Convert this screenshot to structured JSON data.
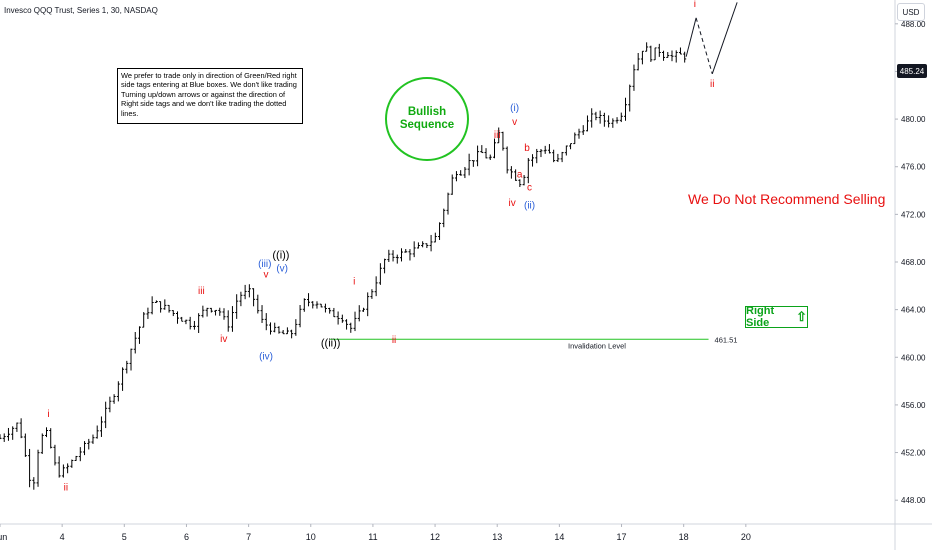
{
  "header": {
    "title": "Invesco QQQ Trust, Series 1, 30, NASDAQ",
    "currency": "USD"
  },
  "note": "We prefer to trade only in direction of Green/Red right side tags entering at Blue boxes. We don't like trading Turning up/down arrows or against the direction of Right side tags and we don't like trading the dotted lines.",
  "bullish": {
    "line1": "Bullish",
    "line2": "Sequence"
  },
  "recommendation": "We Do Not Recommend Selling",
  "right_side": {
    "label": "Right Side"
  },
  "last_price": "485.24",
  "colors": {
    "red": "#e81010",
    "blue": "#2b5fd8",
    "black": "#000000",
    "green": "#0ba31a",
    "bars": "#000000"
  },
  "chart_data": {
    "type": "line",
    "style": "ohlc-bars",
    "ylim": [
      446,
      490
    ],
    "y_ticks": [
      448,
      452,
      456,
      460,
      464,
      468,
      472,
      476,
      480,
      484,
      488
    ],
    "x_ticks": [
      "Jun",
      "4",
      "5",
      "6",
      "7",
      "10",
      "11",
      "12",
      "13",
      "14",
      "17",
      "18",
      "20"
    ],
    "xrange_x": [
      0,
      72
    ],
    "tick_x": [
      0,
      5,
      10,
      15,
      20,
      25,
      30,
      35,
      40,
      45,
      50,
      55,
      60
    ],
    "price_path_x": [
      0,
      1.5,
      2.6,
      3.2,
      3.8,
      4.6,
      5.3,
      6.2,
      7.5,
      9,
      10.5,
      11.5,
      12.3,
      13.2,
      14.2,
      15.5,
      16.6,
      17.6,
      18.3,
      19.2,
      20.2,
      21,
      21.7,
      22.4,
      23.4,
      24.5,
      25.6,
      26.4,
      27.5,
      28.2,
      29,
      30,
      31,
      32,
      33,
      34,
      35,
      36,
      36.6,
      36.9,
      37.6,
      38.7,
      39.4,
      40.2,
      40.8,
      41.4,
      42,
      42.4,
      42.7,
      43.2,
      44,
      44.7,
      45.5,
      46.2,
      47,
      47.8,
      48.5,
      49.3,
      50.1,
      51,
      51.8,
      52.4,
      52.9,
      53.3,
      53.6,
      54.1,
      54.6,
      55.2
    ],
    "price_path_y": [
      453.2,
      454.5,
      448.8,
      453.2,
      453.6,
      450.2,
      450.6,
      451.8,
      453.3,
      456.5,
      460.6,
      463.3,
      464.6,
      464.2,
      463.5,
      462.7,
      464.2,
      464.0,
      462.6,
      465.2,
      465.5,
      463.1,
      462.5,
      462.0,
      461.9,
      464.7,
      464.6,
      463.7,
      463.4,
      462.4,
      463.8,
      465.8,
      468.3,
      468.6,
      468.9,
      469.3,
      470.0,
      473.5,
      475.8,
      475.4,
      476.3,
      477.2,
      476.6,
      479.0,
      476.0,
      475.2,
      474.5,
      476.6,
      476.6,
      477.2,
      477.6,
      476.2,
      477.5,
      478.5,
      479.4,
      480.4,
      479.9,
      479.8,
      480.6,
      484.3,
      486.2,
      485.2,
      486.0,
      485.3,
      485.7,
      485.2,
      485.4,
      485.24
    ],
    "projection": {
      "x": [
        55.2,
        56.0,
        57.3,
        59.3
      ],
      "y": [
        485.24,
        488.5,
        483.8,
        489.8
      ],
      "dashed_segments": 1
    },
    "invalidation": {
      "level": 461.51,
      "label": "Invalidation Level",
      "value_label": "461.51",
      "x_start": 26.5,
      "x_end": 57.0
    },
    "wave_labels": [
      {
        "text": "i",
        "x": 3.9,
        "y": 455.0,
        "color": "red"
      },
      {
        "text": "ii",
        "x": 5.3,
        "y": 448.8,
        "color": "red"
      },
      {
        "text": "iii",
        "x": 16.2,
        "y": 465.3,
        "color": "red"
      },
      {
        "text": "iv",
        "x": 18.0,
        "y": 461.3,
        "color": "red"
      },
      {
        "text": "(iii)",
        "x": 21.3,
        "y": 467.6,
        "color": "blue"
      },
      {
        "text": "v",
        "x": 21.4,
        "y": 466.7,
        "color": "red"
      },
      {
        "text": "((i))",
        "x": 22.6,
        "y": 468.3,
        "color": "black"
      },
      {
        "text": "(v)",
        "x": 22.7,
        "y": 467.2,
        "color": "blue"
      },
      {
        "text": "(iv)",
        "x": 21.4,
        "y": 459.8,
        "color": "blue"
      },
      {
        "text": "((ii))",
        "x": 26.6,
        "y": 460.9,
        "color": "black"
      },
      {
        "text": "i",
        "x": 28.5,
        "y": 466.1,
        "color": "red"
      },
      {
        "text": "ii",
        "x": 31.7,
        "y": 461.2,
        "color": "red"
      },
      {
        "text": "iii",
        "x": 40.0,
        "y": 478.4,
        "color": "red"
      },
      {
        "text": "(i)",
        "x": 41.4,
        "y": 480.7,
        "color": "blue"
      },
      {
        "text": "v",
        "x": 41.4,
        "y": 479.5,
        "color": "red"
      },
      {
        "text": "b",
        "x": 42.4,
        "y": 477.3,
        "color": "red"
      },
      {
        "text": "a",
        "x": 41.8,
        "y": 475.1,
        "color": "red"
      },
      {
        "text": "c",
        "x": 42.6,
        "y": 474.0,
        "color": "red"
      },
      {
        "text": "iv",
        "x": 41.2,
        "y": 472.7,
        "color": "red"
      },
      {
        "text": "(ii)",
        "x": 42.6,
        "y": 472.5,
        "color": "blue"
      },
      {
        "text": "i",
        "x": 55.9,
        "y": 489.4,
        "color": "red"
      },
      {
        "text": "ii",
        "x": 57.3,
        "y": 482.7,
        "color": "red"
      }
    ]
  }
}
